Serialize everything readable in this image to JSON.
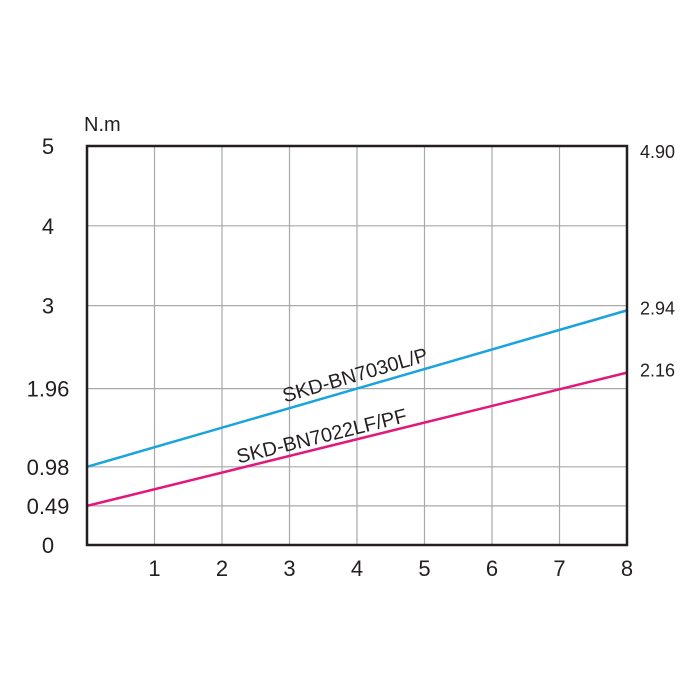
{
  "chart_data": {
    "type": "line",
    "ylabel": "N.m",
    "xlim": [
      0,
      8
    ],
    "ylim": [
      0,
      5
    ],
    "grid": true,
    "x_ticks": [
      "1",
      "2",
      "3",
      "4",
      "5",
      "6",
      "7",
      "8"
    ],
    "y_ticks": [
      {
        "value": 0,
        "label": "0"
      },
      {
        "value": 0.49,
        "label": "0.49"
      },
      {
        "value": 0.98,
        "label": "0.98"
      },
      {
        "value": 1.96,
        "label": "1.96"
      },
      {
        "value": 3,
        "label": "3"
      },
      {
        "value": 4,
        "label": "4"
      },
      {
        "value": 5,
        "label": "5"
      }
    ],
    "right_labels": [
      {
        "value": 4.9,
        "label": "4.90"
      },
      {
        "value": 2.94,
        "label": "2.94"
      },
      {
        "value": 2.16,
        "label": "2.16"
      }
    ],
    "series": [
      {
        "name": "SKD-BN7030L/P",
        "color": "#1aa3dd",
        "x": [
          0,
          8
        ],
        "y": [
          0.98,
          2.94
        ]
      },
      {
        "name": "SKD-BN7022LF/PF",
        "color": "#e2197c",
        "x": [
          0,
          8
        ],
        "y": [
          0.49,
          2.16
        ]
      }
    ]
  }
}
